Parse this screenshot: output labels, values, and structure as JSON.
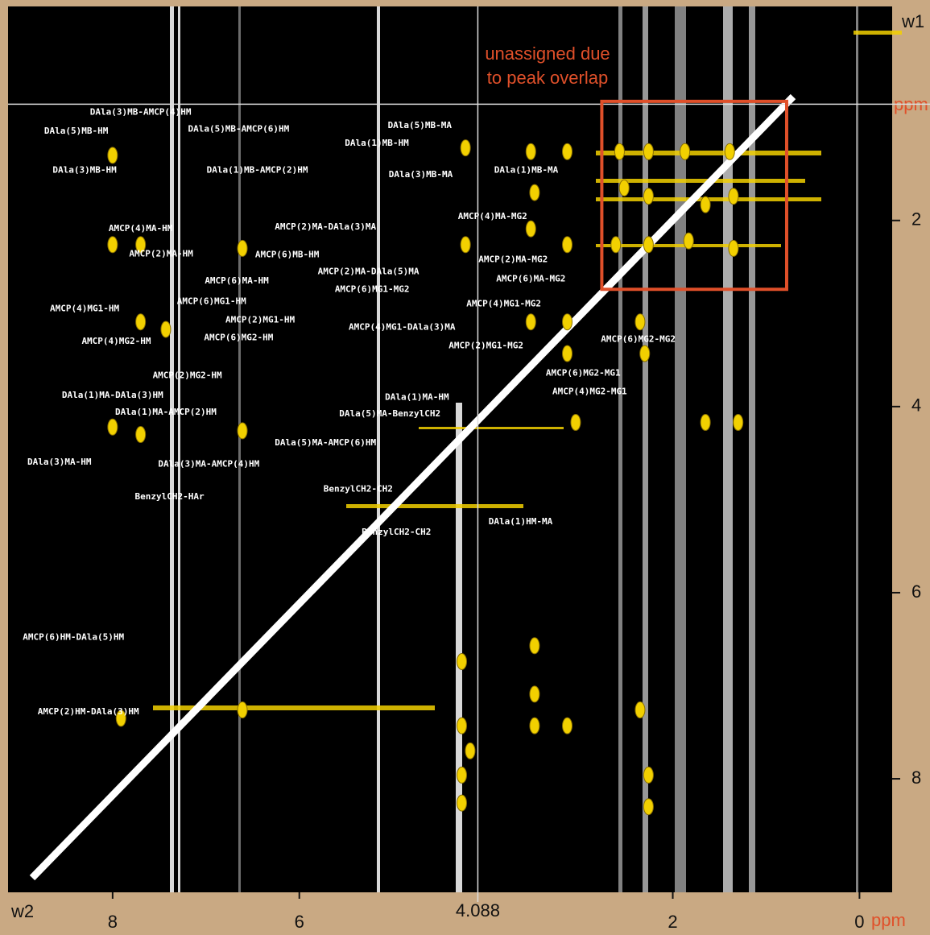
{
  "chart_data": {
    "type": "contour2d",
    "x_label": "w2",
    "y_label": "w1",
    "unit": "ppm",
    "xlim": [
      9.12,
      -0.35
    ],
    "ylim": [
      -0.3,
      9.22
    ],
    "xticks": [
      8,
      6,
      2,
      0
    ],
    "yticks": [
      2,
      4,
      6,
      8
    ],
    "cursor": {
      "x": 4.088,
      "y": 0.75
    },
    "peaks": {
      "color": "#f2d000",
      "x": [
        4.22,
        3.52,
        3.13,
        2.57,
        2.26,
        1.87,
        1.39,
        3.48,
        2.52,
        2.26,
        1.65,
        1.35,
        3.52,
        3.13,
        2.61,
        2.26,
        1.83,
        1.35,
        4.22,
        3.52,
        3.13,
        2.35,
        2.3,
        3.13,
        3.04,
        1.65,
        1.3,
        6.61,
        7.7,
        8.0,
        8.0,
        7.7,
        6.61,
        8.0,
        7.43,
        7.7,
        4.26,
        4.26,
        4.17,
        4.26,
        4.26,
        3.13,
        2.26,
        2.26,
        3.48,
        3.48,
        2.35,
        7.91,
        6.61,
        3.48
      ],
      "y": [
        1.22,
        1.26,
        1.26,
        1.26,
        1.26,
        1.26,
        1.26,
        1.7,
        1.65,
        1.74,
        1.83,
        1.74,
        2.09,
        2.26,
        2.26,
        2.26,
        2.22,
        2.3,
        2.26,
        3.09,
        3.09,
        3.09,
        3.43,
        3.43,
        4.17,
        4.17,
        4.17,
        4.26,
        4.3,
        4.22,
        2.26,
        2.26,
        2.3,
        1.3,
        3.17,
        3.09,
        6.74,
        7.43,
        7.7,
        7.96,
        8.26,
        7.43,
        7.96,
        8.3,
        7.09,
        6.57,
        7.26,
        7.35,
        7.26,
        7.43
      ]
    },
    "annotations": [
      {
        "text": "DAla(3)MB-AMCP(4)HM",
        "x": 7.7,
        "y": 0.84
      },
      {
        "text": "DAla(5)MB-HM",
        "x": 8.39,
        "y": 1.04
      },
      {
        "text": "DAla(5)MB-AMCP(6)HM",
        "x": 6.65,
        "y": 1.02
      },
      {
        "text": "DAla(5)MB-MA",
        "x": 4.71,
        "y": 0.98
      },
      {
        "text": "DAla(1)MB-HM",
        "x": 5.17,
        "y": 1.17
      },
      {
        "text": "DAla(3)MB-HM",
        "x": 8.3,
        "y": 1.46
      },
      {
        "text": "DAla(1)MB-AMCP(2)HM",
        "x": 6.45,
        "y": 1.46
      },
      {
        "text": "DAla(3)MB-MA",
        "x": 4.7,
        "y": 1.51
      },
      {
        "text": "DAla(1)MB-MA",
        "x": 3.57,
        "y": 1.46
      },
      {
        "text": "AMCP(4)MA-HM",
        "x": 7.7,
        "y": 2.09
      },
      {
        "text": "AMCP(2)MA-DAla(3)MA",
        "x": 5.72,
        "y": 2.07
      },
      {
        "text": "AMCP(4)MA-MG2",
        "x": 3.93,
        "y": 1.96
      },
      {
        "text": "AMCP(2)MA-HM",
        "x": 7.48,
        "y": 2.36
      },
      {
        "text": "AMCP(6)MB-HM",
        "x": 6.13,
        "y": 2.37
      },
      {
        "text": "AMCP(2)MA-MG2",
        "x": 3.71,
        "y": 2.42
      },
      {
        "text": "AMCP(2)MA-DAla(5)MA",
        "x": 5.26,
        "y": 2.55
      },
      {
        "text": "AMCP(6)MA-MG2",
        "x": 3.52,
        "y": 2.63
      },
      {
        "text": "AMCP(6)MA-HM",
        "x": 6.67,
        "y": 2.65
      },
      {
        "text": "AMCP(6)MG1-MG2",
        "x": 5.22,
        "y": 2.74
      },
      {
        "text": "AMCP(6)MG1-HM",
        "x": 6.94,
        "y": 2.87
      },
      {
        "text": "AMCP(4)MG1-MG2",
        "x": 3.81,
        "y": 2.9
      },
      {
        "text": "AMCP(4)MG1-HM",
        "x": 8.3,
        "y": 2.95
      },
      {
        "text": "AMCP(2)MG1-HM",
        "x": 6.42,
        "y": 3.07
      },
      {
        "text": "AMCP(4)MG1-DAla(3)MA",
        "x": 4.9,
        "y": 3.15
      },
      {
        "text": "AMCP(6)MG2-HM",
        "x": 6.65,
        "y": 3.26
      },
      {
        "text": "AMCP(4)MG2-HM",
        "x": 7.96,
        "y": 3.3
      },
      {
        "text": "AMCP(2)MG1-MG2",
        "x": 4.0,
        "y": 3.35
      },
      {
        "text": "AMCP(6)MG2-MG2",
        "x": 2.37,
        "y": 3.28
      },
      {
        "text": "AMCP(2)MG2-HM",
        "x": 7.2,
        "y": 3.67
      },
      {
        "text": "AMCP(6)MG2-MG1",
        "x": 2.96,
        "y": 3.64
      },
      {
        "text": "AMCP(4)MG2-MG1",
        "x": 2.89,
        "y": 3.84
      },
      {
        "text": "DAla(1)MA-DAla(3)HM",
        "x": 8.0,
        "y": 3.88
      },
      {
        "text": "DAla(1)MA-HM",
        "x": 4.74,
        "y": 3.9
      },
      {
        "text": "DAla(1)MA-AMCP(2)HM",
        "x": 7.43,
        "y": 4.06
      },
      {
        "text": "DAla(5)MA-BenzylCH2",
        "x": 5.03,
        "y": 4.08
      },
      {
        "text": "DAla(5)MA-AMCP(6)HM",
        "x": 5.72,
        "y": 4.39
      },
      {
        "text": "DAla(3)MA-HM",
        "x": 8.57,
        "y": 4.6
      },
      {
        "text": "DAla(3)MA-AMCP(4)HM",
        "x": 6.97,
        "y": 4.62
      },
      {
        "text": "BenzylCH2-HAr",
        "x": 7.39,
        "y": 4.97
      },
      {
        "text": "BenzylCH2-CH2",
        "x": 5.37,
        "y": 4.89
      },
      {
        "text": "BenzylCH2-CH2",
        "x": 4.96,
        "y": 5.35
      },
      {
        "text": "DAla(1)HM-MA",
        "x": 3.63,
        "y": 5.24
      },
      {
        "text": "AMCP(6)HM-DAla(5)HM",
        "x": 8.42,
        "y": 6.48
      },
      {
        "text": "AMCP(2)HM-DAla(3)HM",
        "x": 8.26,
        "y": 7.28
      }
    ],
    "region": {
      "x": [
        2.76,
        0.78
      ],
      "y": [
        0.72,
        2.74
      ],
      "color": "#e0502a",
      "text": [
        "unassigned due",
        "to peak overlap"
      ]
    }
  }
}
